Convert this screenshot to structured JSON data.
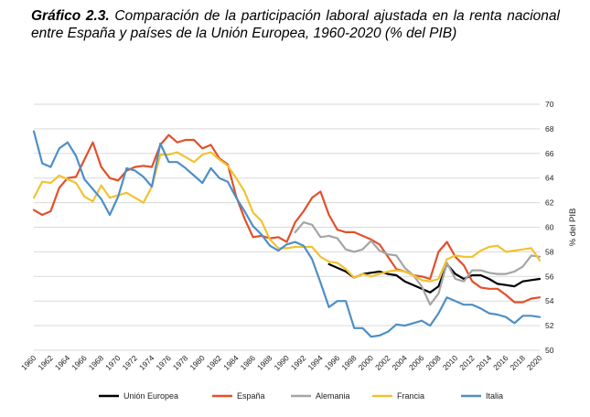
{
  "figure": {
    "number": "Gráfico 2.3.",
    "caption": "Comparación de la participación laboral ajustada en la renta nacional entre España y países de la Unión Europea, 1960-2020 (% del PIB)"
  },
  "chart_data": {
    "type": "line",
    "ylabel": "% del PIB",
    "ylim": [
      50,
      70
    ],
    "yticks": [
      50,
      52,
      54,
      56,
      58,
      60,
      62,
      64,
      66,
      68,
      70
    ],
    "xlim": [
      1960,
      2020
    ],
    "xticks": [
      1960,
      1962,
      1964,
      1966,
      1968,
      1970,
      1972,
      1974,
      1976,
      1978,
      1980,
      1982,
      1984,
      1986,
      1988,
      1990,
      1992,
      1994,
      1996,
      1998,
      2000,
      2002,
      2004,
      2006,
      2008,
      2010,
      2012,
      2014,
      2016,
      2018,
      2020
    ],
    "grid": true,
    "legend_position": "bottom",
    "series": [
      {
        "name": "Unión Europea",
        "color": "#000000",
        "x": [
          1995,
          1996,
          1997,
          1998,
          1999,
          2000,
          2001,
          2002,
          2003,
          2004,
          2005,
          2006,
          2007,
          2008,
          2009,
          2010,
          2011,
          2012,
          2013,
          2014,
          2015,
          2016,
          2017,
          2018,
          2019,
          2020
        ],
        "y": [
          57.0,
          56.7,
          56.4,
          55.9,
          56.2,
          56.3,
          56.4,
          56.2,
          56.1,
          55.6,
          55.3,
          55.0,
          54.7,
          55.2,
          57.0,
          56.2,
          55.8,
          56.1,
          56.1,
          55.8,
          55.4,
          55.3,
          55.2,
          55.6,
          55.7,
          55.8
        ]
      },
      {
        "name": "España",
        "color": "#e2502b",
        "x": [
          1960,
          1961,
          1962,
          1963,
          1964,
          1965,
          1966,
          1967,
          1968,
          1969,
          1970,
          1971,
          1972,
          1973,
          1974,
          1975,
          1976,
          1977,
          1978,
          1979,
          1980,
          1981,
          1982,
          1983,
          1984,
          1985,
          1986,
          1987,
          1988,
          1989,
          1990,
          1991,
          1992,
          1993,
          1994,
          1995,
          1996,
          1997,
          1998,
          1999,
          2000,
          2001,
          2002,
          2003,
          2004,
          2005,
          2006,
          2007,
          2008,
          2009,
          2010,
          2011,
          2012,
          2013,
          2014,
          2015,
          2016,
          2017,
          2018,
          2019,
          2020
        ],
        "y": [
          61.4,
          61.0,
          61.3,
          63.2,
          64.0,
          64.1,
          65.5,
          66.9,
          64.9,
          64.0,
          63.8,
          64.6,
          64.9,
          65.0,
          64.9,
          66.7,
          67.5,
          66.9,
          67.1,
          67.1,
          66.4,
          66.7,
          65.6,
          65.1,
          62.5,
          60.7,
          59.2,
          59.3,
          59.1,
          59.2,
          58.8,
          60.4,
          61.3,
          62.4,
          62.9,
          61.0,
          59.8,
          59.6,
          59.6,
          59.3,
          59.0,
          58.6,
          57.6,
          56.6,
          56.4,
          56.1,
          56.0,
          55.8,
          58.0,
          58.8,
          57.6,
          56.9,
          55.6,
          55.1,
          55.0,
          55.0,
          54.5,
          53.9,
          53.9,
          54.2,
          54.3
        ]
      },
      {
        "name": "Alemania",
        "color": "#a5a5a5",
        "x": [
          1991,
          1992,
          1993,
          1994,
          1995,
          1996,
          1997,
          1998,
          1999,
          2000,
          2001,
          2002,
          2003,
          2004,
          2005,
          2006,
          2007,
          2008,
          2009,
          2010,
          2011,
          2012,
          2013,
          2014,
          2015,
          2016,
          2017,
          2018,
          2019,
          2020
        ],
        "y": [
          59.6,
          60.4,
          60.2,
          59.2,
          59.3,
          59.1,
          58.2,
          58.0,
          58.2,
          58.9,
          58.1,
          57.8,
          57.7,
          56.7,
          56.1,
          55.2,
          53.7,
          54.6,
          57.1,
          55.8,
          55.6,
          56.5,
          56.5,
          56.3,
          56.2,
          56.2,
          56.4,
          56.8,
          57.7,
          57.6
        ]
      },
      {
        "name": "Francia",
        "color": "#f2c230",
        "x": [
          1960,
          1961,
          1962,
          1963,
          1964,
          1965,
          1966,
          1967,
          1968,
          1969,
          1970,
          1971,
          1972,
          1973,
          1974,
          1975,
          1976,
          1977,
          1978,
          1979,
          1980,
          1981,
          1982,
          1983,
          1984,
          1985,
          1986,
          1987,
          1988,
          1989,
          1990,
          1991,
          1992,
          1993,
          1994,
          1995,
          1996,
          1997,
          1998,
          1999,
          2000,
          2001,
          2002,
          2003,
          2004,
          2005,
          2006,
          2007,
          2008,
          2009,
          2010,
          2011,
          2012,
          2013,
          2014,
          2015,
          2016,
          2017,
          2018,
          2019,
          2020
        ],
        "y": [
          62.4,
          63.7,
          63.6,
          64.2,
          63.9,
          63.6,
          62.5,
          62.1,
          63.4,
          62.4,
          62.6,
          62.8,
          62.4,
          62.0,
          63.3,
          65.9,
          65.9,
          66.1,
          65.7,
          65.3,
          65.9,
          66.1,
          65.5,
          65.0,
          64.0,
          62.9,
          61.2,
          60.5,
          59.0,
          58.3,
          58.3,
          58.4,
          58.4,
          58.4,
          57.6,
          57.2,
          57.1,
          56.6,
          55.9,
          56.2,
          56.0,
          56.2,
          56.4,
          56.5,
          56.4,
          56.1,
          55.7,
          55.6,
          55.8,
          57.4,
          57.7,
          57.6,
          57.6,
          58.1,
          58.4,
          58.5,
          58.0,
          58.1,
          58.2,
          58.3,
          57.3
        ]
      },
      {
        "name": "Italia",
        "color": "#4e8fc6",
        "x": [
          1960,
          1961,
          1962,
          1963,
          1964,
          1965,
          1966,
          1967,
          1968,
          1969,
          1970,
          1971,
          1972,
          1973,
          1974,
          1975,
          1976,
          1977,
          1978,
          1979,
          1980,
          1981,
          1982,
          1983,
          1984,
          1985,
          1986,
          1987,
          1988,
          1989,
          1990,
          1991,
          1992,
          1993,
          1994,
          1995,
          1996,
          1997,
          1998,
          1999,
          2000,
          2001,
          2002,
          2003,
          2004,
          2005,
          2006,
          2007,
          2008,
          2009,
          2010,
          2011,
          2012,
          2013,
          2014,
          2015,
          2016,
          2017,
          2018,
          2019,
          2020
        ],
        "y": [
          67.8,
          65.2,
          64.9,
          66.4,
          66.9,
          65.8,
          63.9,
          63.1,
          62.3,
          61.0,
          62.5,
          64.8,
          64.6,
          64.1,
          63.3,
          66.8,
          65.3,
          65.3,
          64.8,
          64.2,
          63.6,
          64.8,
          64.0,
          63.7,
          62.4,
          61.3,
          60.1,
          59.4,
          58.5,
          58.1,
          58.6,
          58.8,
          58.5,
          57.4,
          55.5,
          53.5,
          54.0,
          54.0,
          51.8,
          51.8,
          51.1,
          51.2,
          51.5,
          52.1,
          52.0,
          52.2,
          52.4,
          52.0,
          53.0,
          54.3,
          54.0,
          53.7,
          53.7,
          53.4,
          53.0,
          52.9,
          52.7,
          52.2,
          52.8,
          52.8,
          52.7
        ]
      }
    ]
  }
}
